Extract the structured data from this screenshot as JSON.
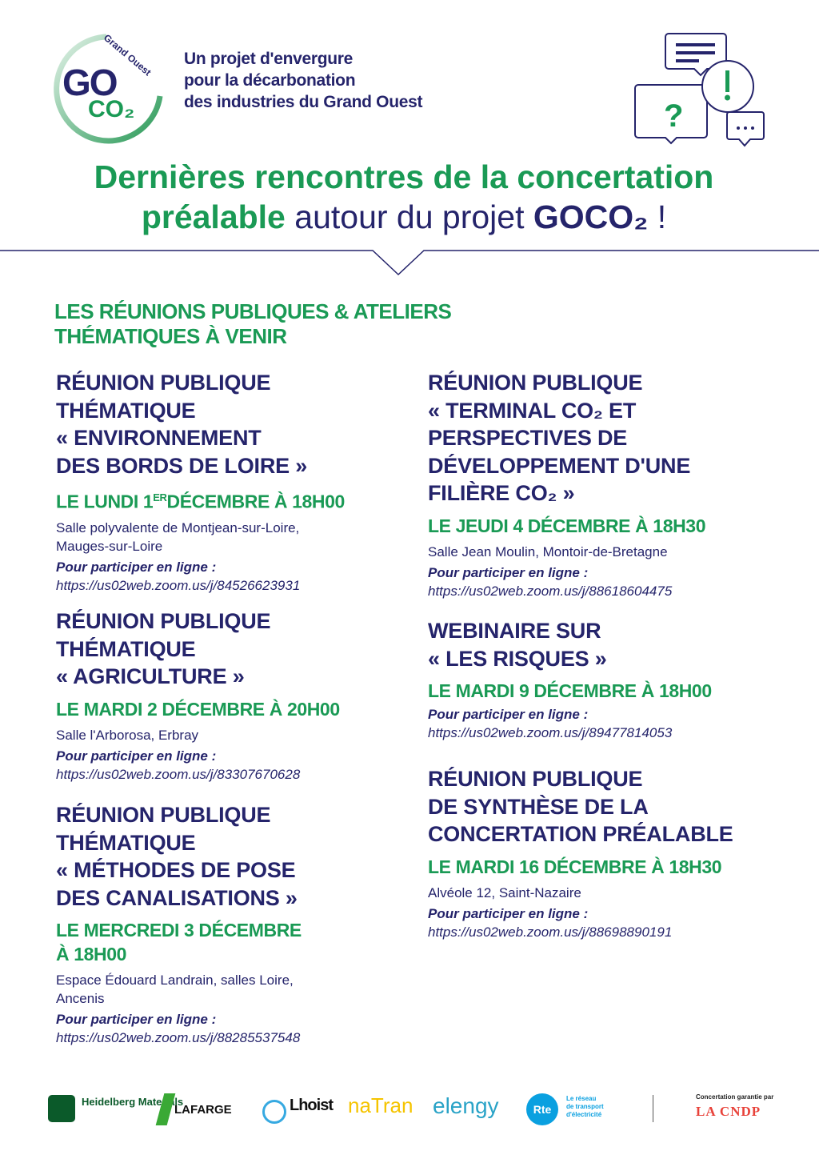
{
  "header": {
    "logo": {
      "main": "GO",
      "sub": "CO₂",
      "ring_text": "Grand Ouest"
    },
    "tagline": [
      "Un projet d'envergure",
      "pour la décarbonation",
      "des industries du Grand Ouest"
    ],
    "illustration_icon": "speech-bubbles-icon"
  },
  "title": {
    "line1": "Dernières rencontres de la concertation",
    "line2_green": "préalable",
    "line2_normal": " autour du projet ",
    "line2_bold": "GOCO₂",
    "line2_end": " !"
  },
  "section_title": [
    "LES RÉUNIONS PUBLIQUES & ATELIERS",
    "THÉMATIQUES À VENIR"
  ],
  "online_label": "Pour participer en ligne :",
  "events": [
    {
      "title": [
        "RÉUNION PUBLIQUE",
        "THÉMATIQUE",
        "« ENVIRONNEMENT",
        "DES BORDS DE LOIRE »"
      ],
      "date": [
        "LE LUNDI 1ER DÉCEMBRE À 18H00"
      ],
      "venue": [
        "Salle polyvalente de Montjean-sur-Loire,",
        "Mauges-sur-Loire"
      ],
      "url": "https://us02web.zoom.us/j/84526623931"
    },
    {
      "title": [
        "RÉUNION PUBLIQUE",
        "THÉMATIQUE",
        "« AGRICULTURE »"
      ],
      "date": [
        "LE MARDI 2 DÉCEMBRE À 20H00"
      ],
      "venue": [
        "Salle l'Arborosa, Erbray"
      ],
      "url": "https://us02web.zoom.us/j/83307670628"
    },
    {
      "title": [
        "RÉUNION PUBLIQUE",
        "THÉMATIQUE",
        "« MÉTHODES DE POSE",
        "DES CANALISATIONS »"
      ],
      "date": [
        "LE MERCREDI 3 DÉCEMBRE",
        "À 18H00"
      ],
      "venue": [
        "Espace Édouard Landrain, salles Loire,",
        "Ancenis"
      ],
      "url": "https://us02web.zoom.us/j/88285537548"
    },
    {
      "title": [
        "RÉUNION PUBLIQUE",
        "« TERMINAL CO₂ ET",
        "PERSPECTIVES DE",
        "DÉVELOPPEMENT D'UNE",
        "FILIÈRE CO₂ »"
      ],
      "date": [
        "LE JEUDI 4 DÉCEMBRE À 18H30"
      ],
      "venue": [
        "Salle Jean Moulin, Montoir-de-Bretagne"
      ],
      "url": "https://us02web.zoom.us/j/88618604475"
    },
    {
      "title": [
        "WEBINAIRE SUR",
        "« LES RISQUES »"
      ],
      "date": [
        "LE MARDI 9 DÉCEMBRE À 18H00"
      ],
      "venue": [],
      "url": "https://us02web.zoom.us/j/89477814053"
    },
    {
      "title": [
        "RÉUNION PUBLIQUE",
        "DE SYNTHÈSE DE LA",
        "CONCERTATION PRÉALABLE"
      ],
      "date": [
        "LE MARDI 16 DÉCEMBRE À 18H30"
      ],
      "venue": [
        "Alvéole 12, Saint-Nazaire"
      ],
      "url": "https://us02web.zoom.us/j/88698890191"
    }
  ],
  "footer": {
    "partners": [
      "Heidelberg Materials",
      "LAFARGE",
      "Lhoist",
      "naTran",
      "elengy",
      "Rte"
    ],
    "rte_tagline": [
      "Le réseau",
      "de transport",
      "d'électricité"
    ],
    "guarantee_label": "Concertation garantie par",
    "guarantor": "LA CNDP"
  },
  "colors": {
    "navy": "#25246b",
    "green": "#1a9a55"
  }
}
